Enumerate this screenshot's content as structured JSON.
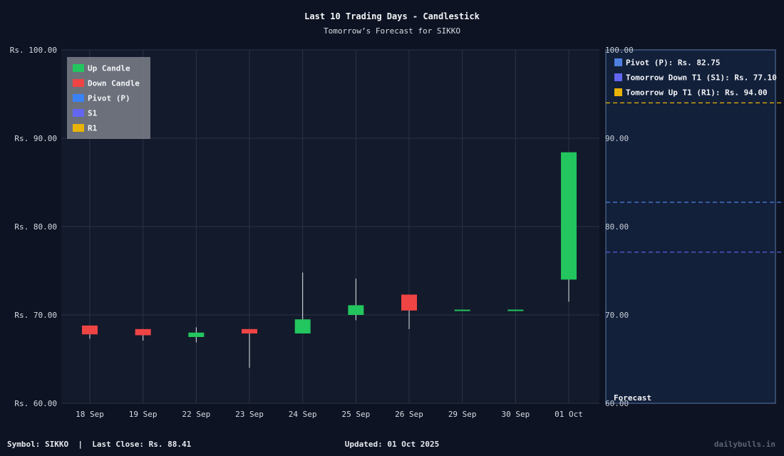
{
  "chart_data": {
    "type": "candlestick",
    "title": "Last 10 Trading Days - Candlestick",
    "subtitle": "Tomorrow’s Forecast for SIKKO",
    "ylim": [
      60,
      100
    ],
    "y_ticks": [
      "Rs. 60.00",
      "Rs. 70.00",
      "Rs. 80.00",
      "Rs. 90.00",
      "Rs. 100.00"
    ],
    "y_tick_values": [
      60,
      70,
      80,
      90,
      100
    ],
    "y_ticks_right": [
      "60.00",
      "70.00",
      "80.00",
      "90.00",
      "100.00"
    ],
    "categories": [
      "18 Sep",
      "19 Sep",
      "22 Sep",
      "23 Sep",
      "24 Sep",
      "25 Sep",
      "26 Sep",
      "29 Sep",
      "30 Sep",
      "01 Oct"
    ],
    "candles": [
      {
        "date": "18 Sep",
        "open": 68.8,
        "high": 68.8,
        "low": 67.3,
        "close": 67.8
      },
      {
        "date": "19 Sep",
        "open": 68.4,
        "high": 68.4,
        "low": 67.1,
        "close": 67.7
      },
      {
        "date": "22 Sep",
        "open": 67.5,
        "high": 68.6,
        "low": 66.9,
        "close": 68.0
      },
      {
        "date": "23 Sep",
        "open": 68.4,
        "high": 68.4,
        "low": 64.0,
        "close": 67.9
      },
      {
        "date": "24 Sep",
        "open": 67.9,
        "high": 74.8,
        "low": 67.9,
        "close": 69.5
      },
      {
        "date": "25 Sep",
        "open": 70.0,
        "high": 74.1,
        "low": 69.4,
        "close": 71.1
      },
      {
        "date": "26 Sep",
        "open": 72.3,
        "high": 72.3,
        "low": 68.4,
        "close": 70.5
      },
      {
        "date": "29 Sep",
        "open": 70.5,
        "high": 70.6,
        "low": 70.5,
        "close": 70.6
      },
      {
        "date": "30 Sep",
        "open": 70.5,
        "high": 70.6,
        "low": 70.5,
        "close": 70.6
      },
      {
        "date": "01 Oct",
        "open": 74.0,
        "high": 88.41,
        "low": 71.5,
        "close": 88.41
      }
    ],
    "legend": {
      "placement": "top-left",
      "items": [
        {
          "label": "Up Candle",
          "color": "#22c55e"
        },
        {
          "label": "Down Candle",
          "color": "#ef4444"
        },
        {
          "label": "Pivot (P)",
          "color": "#3b82f6"
        },
        {
          "label": "S1",
          "color": "#6366f1"
        },
        {
          "label": "R1",
          "color": "#eab308"
        }
      ]
    },
    "forecast": {
      "label": "Forecast",
      "pivot": 82.75,
      "s1": 77.1,
      "r1": 94.0,
      "legend_items": [
        {
          "label": "Pivot (P): Rs. 82.75",
          "color": "#4f80e1"
        },
        {
          "label": "Tomorrow Down T1 (S1): Rs. 77.10",
          "color": "#6366f1"
        },
        {
          "label": "Tomorrow Up T1 (R1): Rs. 94.00",
          "color": "#eab308"
        }
      ]
    },
    "colors": {
      "up": "#22c55e",
      "down": "#ef4444",
      "pivot": "#4f80e1",
      "s1": "#6366f1",
      "r1": "#eab308",
      "grid": "#2b3344",
      "panel": "#131a2b",
      "forecast_panel": "#12203a"
    }
  },
  "footer": {
    "symbol_text": "Symbol: SIKKO  |  Last Close: Rs. 88.41",
    "updated_text": "Updated: 01 Oct 2025",
    "watermark": "dailybulls.in"
  }
}
